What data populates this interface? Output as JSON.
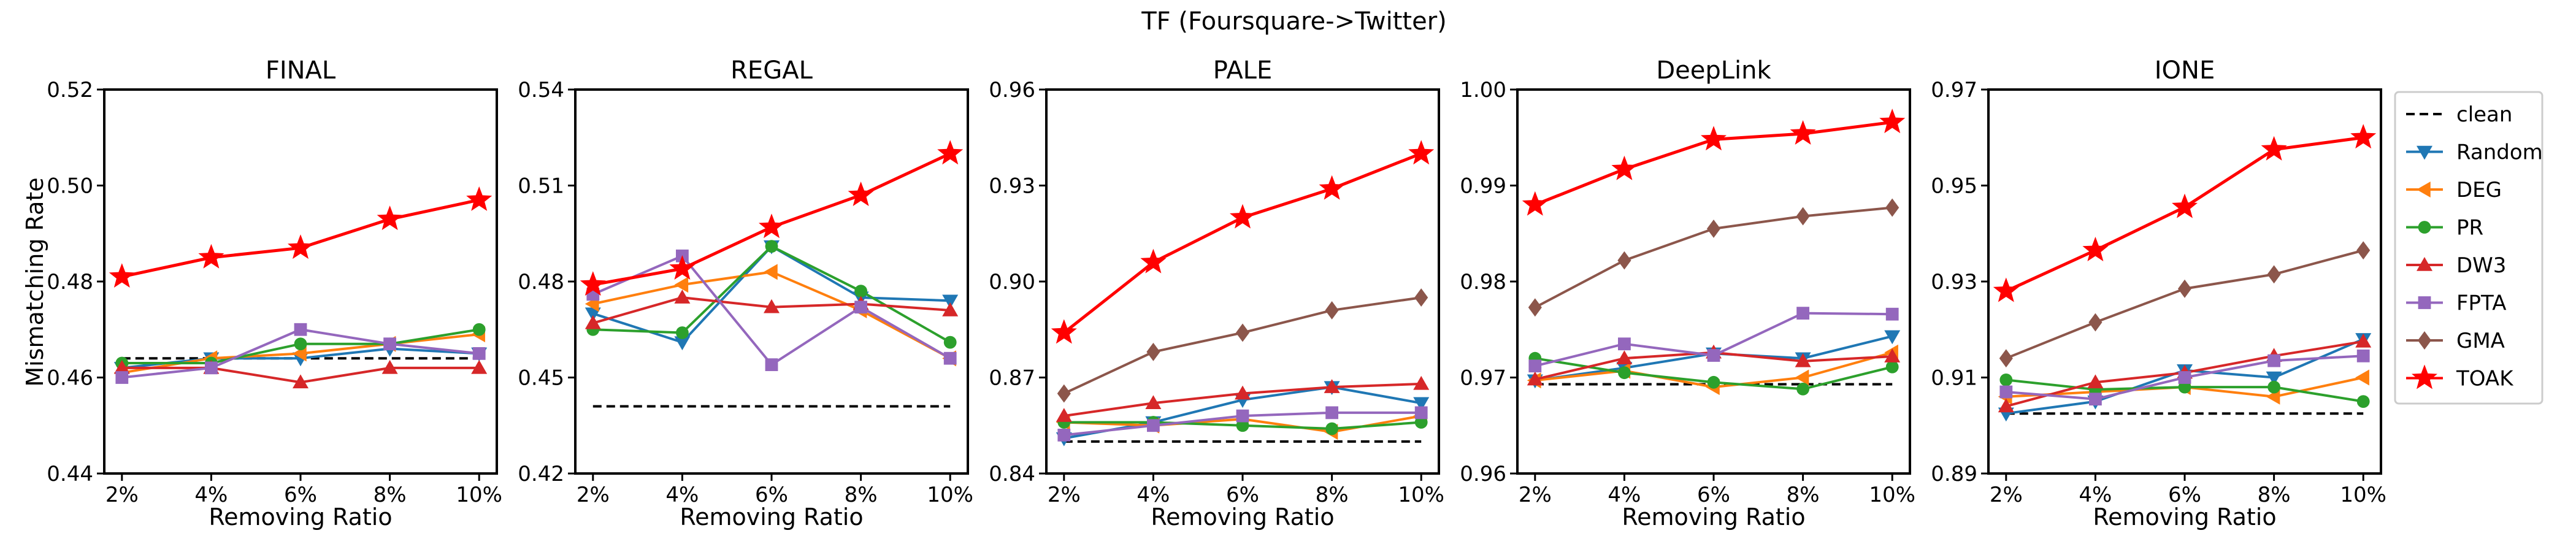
{
  "suptitle": "TF (Foursquare->Twitter)",
  "ylabel": "Mismatching Rate",
  "xlabel": "Removing Ratio",
  "legend": [
    {
      "key": "clean",
      "label": "clean",
      "color": "#000000",
      "marker": "none",
      "dashed": true
    },
    {
      "key": "Random",
      "label": "Random",
      "color": "#1f77b4",
      "marker": "tri-down"
    },
    {
      "key": "DEG",
      "label": "DEG",
      "color": "#ff7f0e",
      "marker": "tri-left"
    },
    {
      "key": "PR",
      "label": "PR",
      "color": "#2ca02c",
      "marker": "circle"
    },
    {
      "key": "DW3",
      "label": "DW3",
      "color": "#d62728",
      "marker": "tri-up"
    },
    {
      "key": "FPTA",
      "label": "FPTA",
      "color": "#9467bd",
      "marker": "square"
    },
    {
      "key": "GMA",
      "label": "GMA",
      "color": "#8c564b",
      "marker": "diamond"
    },
    {
      "key": "TOAK",
      "label": "TOAK",
      "color": "#ff0000",
      "marker": "star"
    }
  ],
  "chart_data": [
    {
      "type": "line",
      "title": "FINAL",
      "categories": [
        "2%",
        "4%",
        "6%",
        "8%",
        "10%"
      ],
      "ylim": [
        0.44,
        0.52
      ],
      "yticks": [
        "0.44",
        "0.46",
        "0.48",
        "0.50",
        "0.52"
      ],
      "xlabel": "Removing Ratio",
      "ylabel": "Mismatching Rate",
      "series": [
        {
          "name": "clean",
          "values": [
            0.464,
            0.464,
            0.464,
            0.464,
            0.464
          ]
        },
        {
          "name": "Random",
          "values": [
            0.462,
            0.464,
            0.464,
            0.466,
            0.465
          ]
        },
        {
          "name": "DEG",
          "values": [
            0.461,
            0.464,
            0.465,
            0.467,
            0.469
          ]
        },
        {
          "name": "PR",
          "values": [
            0.463,
            0.463,
            0.467,
            0.467,
            0.47
          ]
        },
        {
          "name": "DW3",
          "values": [
            0.462,
            0.462,
            0.459,
            0.462,
            0.462
          ]
        },
        {
          "name": "FPTA",
          "values": [
            0.46,
            0.462,
            0.47,
            0.467,
            0.465
          ]
        },
        {
          "name": "TOAK",
          "values": [
            0.481,
            0.485,
            0.487,
            0.493,
            0.497
          ]
        }
      ]
    },
    {
      "type": "line",
      "title": "REGAL",
      "categories": [
        "2%",
        "4%",
        "6%",
        "8%",
        "10%"
      ],
      "ylim": [
        0.42,
        0.54
      ],
      "yticks": [
        "0.42",
        "0.45",
        "0.48",
        "0.51",
        "0.54"
      ],
      "xlabel": "Removing Ratio",
      "ylabel": "",
      "series": [
        {
          "name": "clean",
          "values": [
            0.441,
            0.441,
            0.441,
            0.441,
            0.441
          ]
        },
        {
          "name": "Random",
          "values": [
            0.47,
            0.461,
            0.491,
            0.475,
            0.474
          ]
        },
        {
          "name": "DEG",
          "values": [
            0.473,
            0.479,
            0.483,
            0.471,
            0.456
          ]
        },
        {
          "name": "PR",
          "values": [
            0.465,
            0.464,
            0.491,
            0.477,
            0.461
          ]
        },
        {
          "name": "DW3",
          "values": [
            0.467,
            0.475,
            0.472,
            0.473,
            0.471
          ]
        },
        {
          "name": "FPTA",
          "values": [
            0.476,
            0.488,
            0.454,
            0.472,
            0.456
          ]
        },
        {
          "name": "TOAK",
          "values": [
            0.479,
            0.484,
            0.497,
            0.507,
            0.52
          ]
        }
      ]
    },
    {
      "type": "line",
      "title": "PALE",
      "categories": [
        "2%",
        "4%",
        "6%",
        "8%",
        "10%"
      ],
      "ylim": [
        0.84,
        0.96
      ],
      "yticks": [
        "0.84",
        "0.87",
        "0.90",
        "0.93",
        "0.96"
      ],
      "xlabel": "Removing Ratio",
      "ylabel": "",
      "series": [
        {
          "name": "clean",
          "values": [
            0.85,
            0.85,
            0.85,
            0.85,
            0.85
          ]
        },
        {
          "name": "Random",
          "values": [
            0.851,
            0.856,
            0.863,
            0.867,
            0.862
          ]
        },
        {
          "name": "DEG",
          "values": [
            0.856,
            0.855,
            0.857,
            0.853,
            0.858
          ]
        },
        {
          "name": "PR",
          "values": [
            0.856,
            0.856,
            0.855,
            0.854,
            0.856
          ]
        },
        {
          "name": "DW3",
          "values": [
            0.858,
            0.862,
            0.865,
            0.867,
            0.868
          ]
        },
        {
          "name": "FPTA",
          "values": [
            0.852,
            0.855,
            0.858,
            0.859,
            0.859
          ]
        },
        {
          "name": "GMA",
          "values": [
            0.865,
            0.878,
            0.884,
            0.891,
            0.895
          ]
        },
        {
          "name": "TOAK",
          "values": [
            0.884,
            0.906,
            0.92,
            0.929,
            0.94
          ]
        }
      ]
    },
    {
      "type": "line",
      "title": "DeepLink",
      "categories": [
        "2%",
        "4%",
        "6%",
        "8%",
        "10%"
      ],
      "ylim": [
        0.96,
        1.0
      ],
      "yticks": [
        "0.96",
        "0.97",
        "0.98",
        "0.99",
        "1.00"
      ],
      "xlabel": "Removing Ratio",
      "ylabel": "",
      "series": [
        {
          "name": "clean",
          "values": [
            0.9693,
            0.9693,
            0.9693,
            0.9693,
            0.9693
          ]
        },
        {
          "name": "Random",
          "values": [
            0.9697,
            0.971,
            0.9725,
            0.972,
            0.9743
          ]
        },
        {
          "name": "DEG",
          "values": [
            0.9697,
            0.9707,
            0.969,
            0.97,
            0.9726
          ]
        },
        {
          "name": "PR",
          "values": [
            0.972,
            0.9705,
            0.9695,
            0.9688,
            0.9711
          ]
        },
        {
          "name": "DW3",
          "values": [
            0.9698,
            0.972,
            0.9726,
            0.9717,
            0.9722
          ]
        },
        {
          "name": "FPTA",
          "values": [
            0.9712,
            0.9735,
            0.9723,
            0.9767,
            0.9766
          ]
        },
        {
          "name": "GMA",
          "values": [
            0.9773,
            0.9822,
            0.9855,
            0.9868,
            0.9877
          ]
        },
        {
          "name": "TOAK",
          "values": [
            0.988,
            0.9917,
            0.9948,
            0.9954,
            0.9966
          ]
        }
      ]
    },
    {
      "type": "line",
      "title": "IONE",
      "categories": [
        "2%",
        "4%",
        "6%",
        "8%",
        "10%"
      ],
      "ylim": [
        0.89,
        0.97
      ],
      "yticks": [
        "0.89",
        "0.91",
        "0.93",
        "0.95",
        "0.97"
      ],
      "xlabel": "Removing Ratio",
      "ylabel": "",
      "series": [
        {
          "name": "clean",
          "values": [
            0.9025,
            0.9025,
            0.9025,
            0.9025,
            0.9025
          ]
        },
        {
          "name": "Random",
          "values": [
            0.9025,
            0.905,
            0.9115,
            0.91,
            0.918
          ]
        },
        {
          "name": "DEG",
          "values": [
            0.906,
            0.907,
            0.908,
            0.906,
            0.91
          ]
        },
        {
          "name": "PR",
          "values": [
            0.9095,
            0.9075,
            0.908,
            0.908,
            0.905
          ]
        },
        {
          "name": "DW3",
          "values": [
            0.904,
            0.909,
            0.911,
            0.9145,
            0.9175
          ]
        },
        {
          "name": "FPTA",
          "values": [
            0.907,
            0.9055,
            0.91,
            0.9135,
            0.9145
          ]
        },
        {
          "name": "GMA",
          "values": [
            0.914,
            0.9215,
            0.9285,
            0.9315,
            0.9365
          ]
        },
        {
          "name": "TOAK",
          "values": [
            0.928,
            0.9365,
            0.9455,
            0.9575,
            0.96
          ]
        }
      ]
    }
  ]
}
